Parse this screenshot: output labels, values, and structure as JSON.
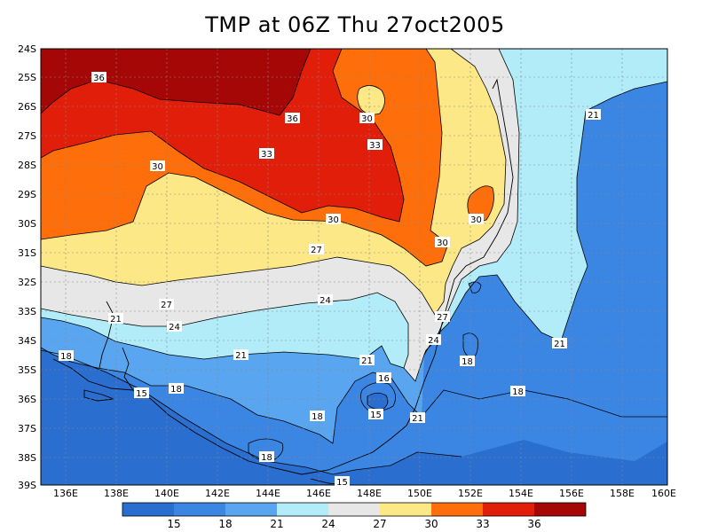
{
  "title": "TMP at 06Z Thu 27oct2005",
  "lat_labels": [
    "24S",
    "25S",
    "26S",
    "27S",
    "28S",
    "29S",
    "30S",
    "31S",
    "32S",
    "33S",
    "34S",
    "35S",
    "36S",
    "37S",
    "38S",
    "39S"
  ],
  "lon_labels": [
    "136E",
    "138E",
    "140E",
    "142E",
    "144E",
    "146E",
    "148E",
    "150E",
    "152E",
    "154E",
    "156E",
    "158E",
    "160E"
  ],
  "contour_labels": {
    "c36a": "36",
    "c36b": "36",
    "c33a": "33",
    "c33b": "33",
    "c30a": "30",
    "c30b": "30",
    "c30c": "30",
    "c30d": "30",
    "c30e": "30",
    "c27a": "27",
    "c27b": "27",
    "c27c": "27",
    "c24a": "24",
    "c24b": "24",
    "c24c": "24",
    "c21a": "21",
    "c21b": "21",
    "c21c": "21",
    "c21d": "21",
    "c21e": "21",
    "c21f": "21",
    "c18a": "18",
    "c18b": "18",
    "c18c": "18",
    "c18d": "18",
    "c18e": "18",
    "c18f": "18",
    "c16": "16",
    "c15a": "15",
    "c15b": "15",
    "c15c": "15"
  },
  "colorbar": {
    "ticks": [
      "15",
      "18",
      "21",
      "24",
      "27",
      "30",
      "33",
      "36"
    ],
    "colors": [
      "#2a6fd0",
      "#3c86e3",
      "#59a5f0",
      "#b1ecf8",
      "#e7e7e7",
      "#fce887",
      "#fe6e0a",
      "#e01e0a",
      "#a50707"
    ]
  },
  "colors": {
    "band_36": "#a50707",
    "band_33": "#e01e0a",
    "band_30": "#fe6e0a",
    "band_27": "#fce887",
    "band_24": "#e7e7e7",
    "band_21": "#b1ecf8",
    "band_18": "#59a5f0",
    "band_15": "#3c86e3",
    "band_lt15": "#2a6fd0"
  }
}
